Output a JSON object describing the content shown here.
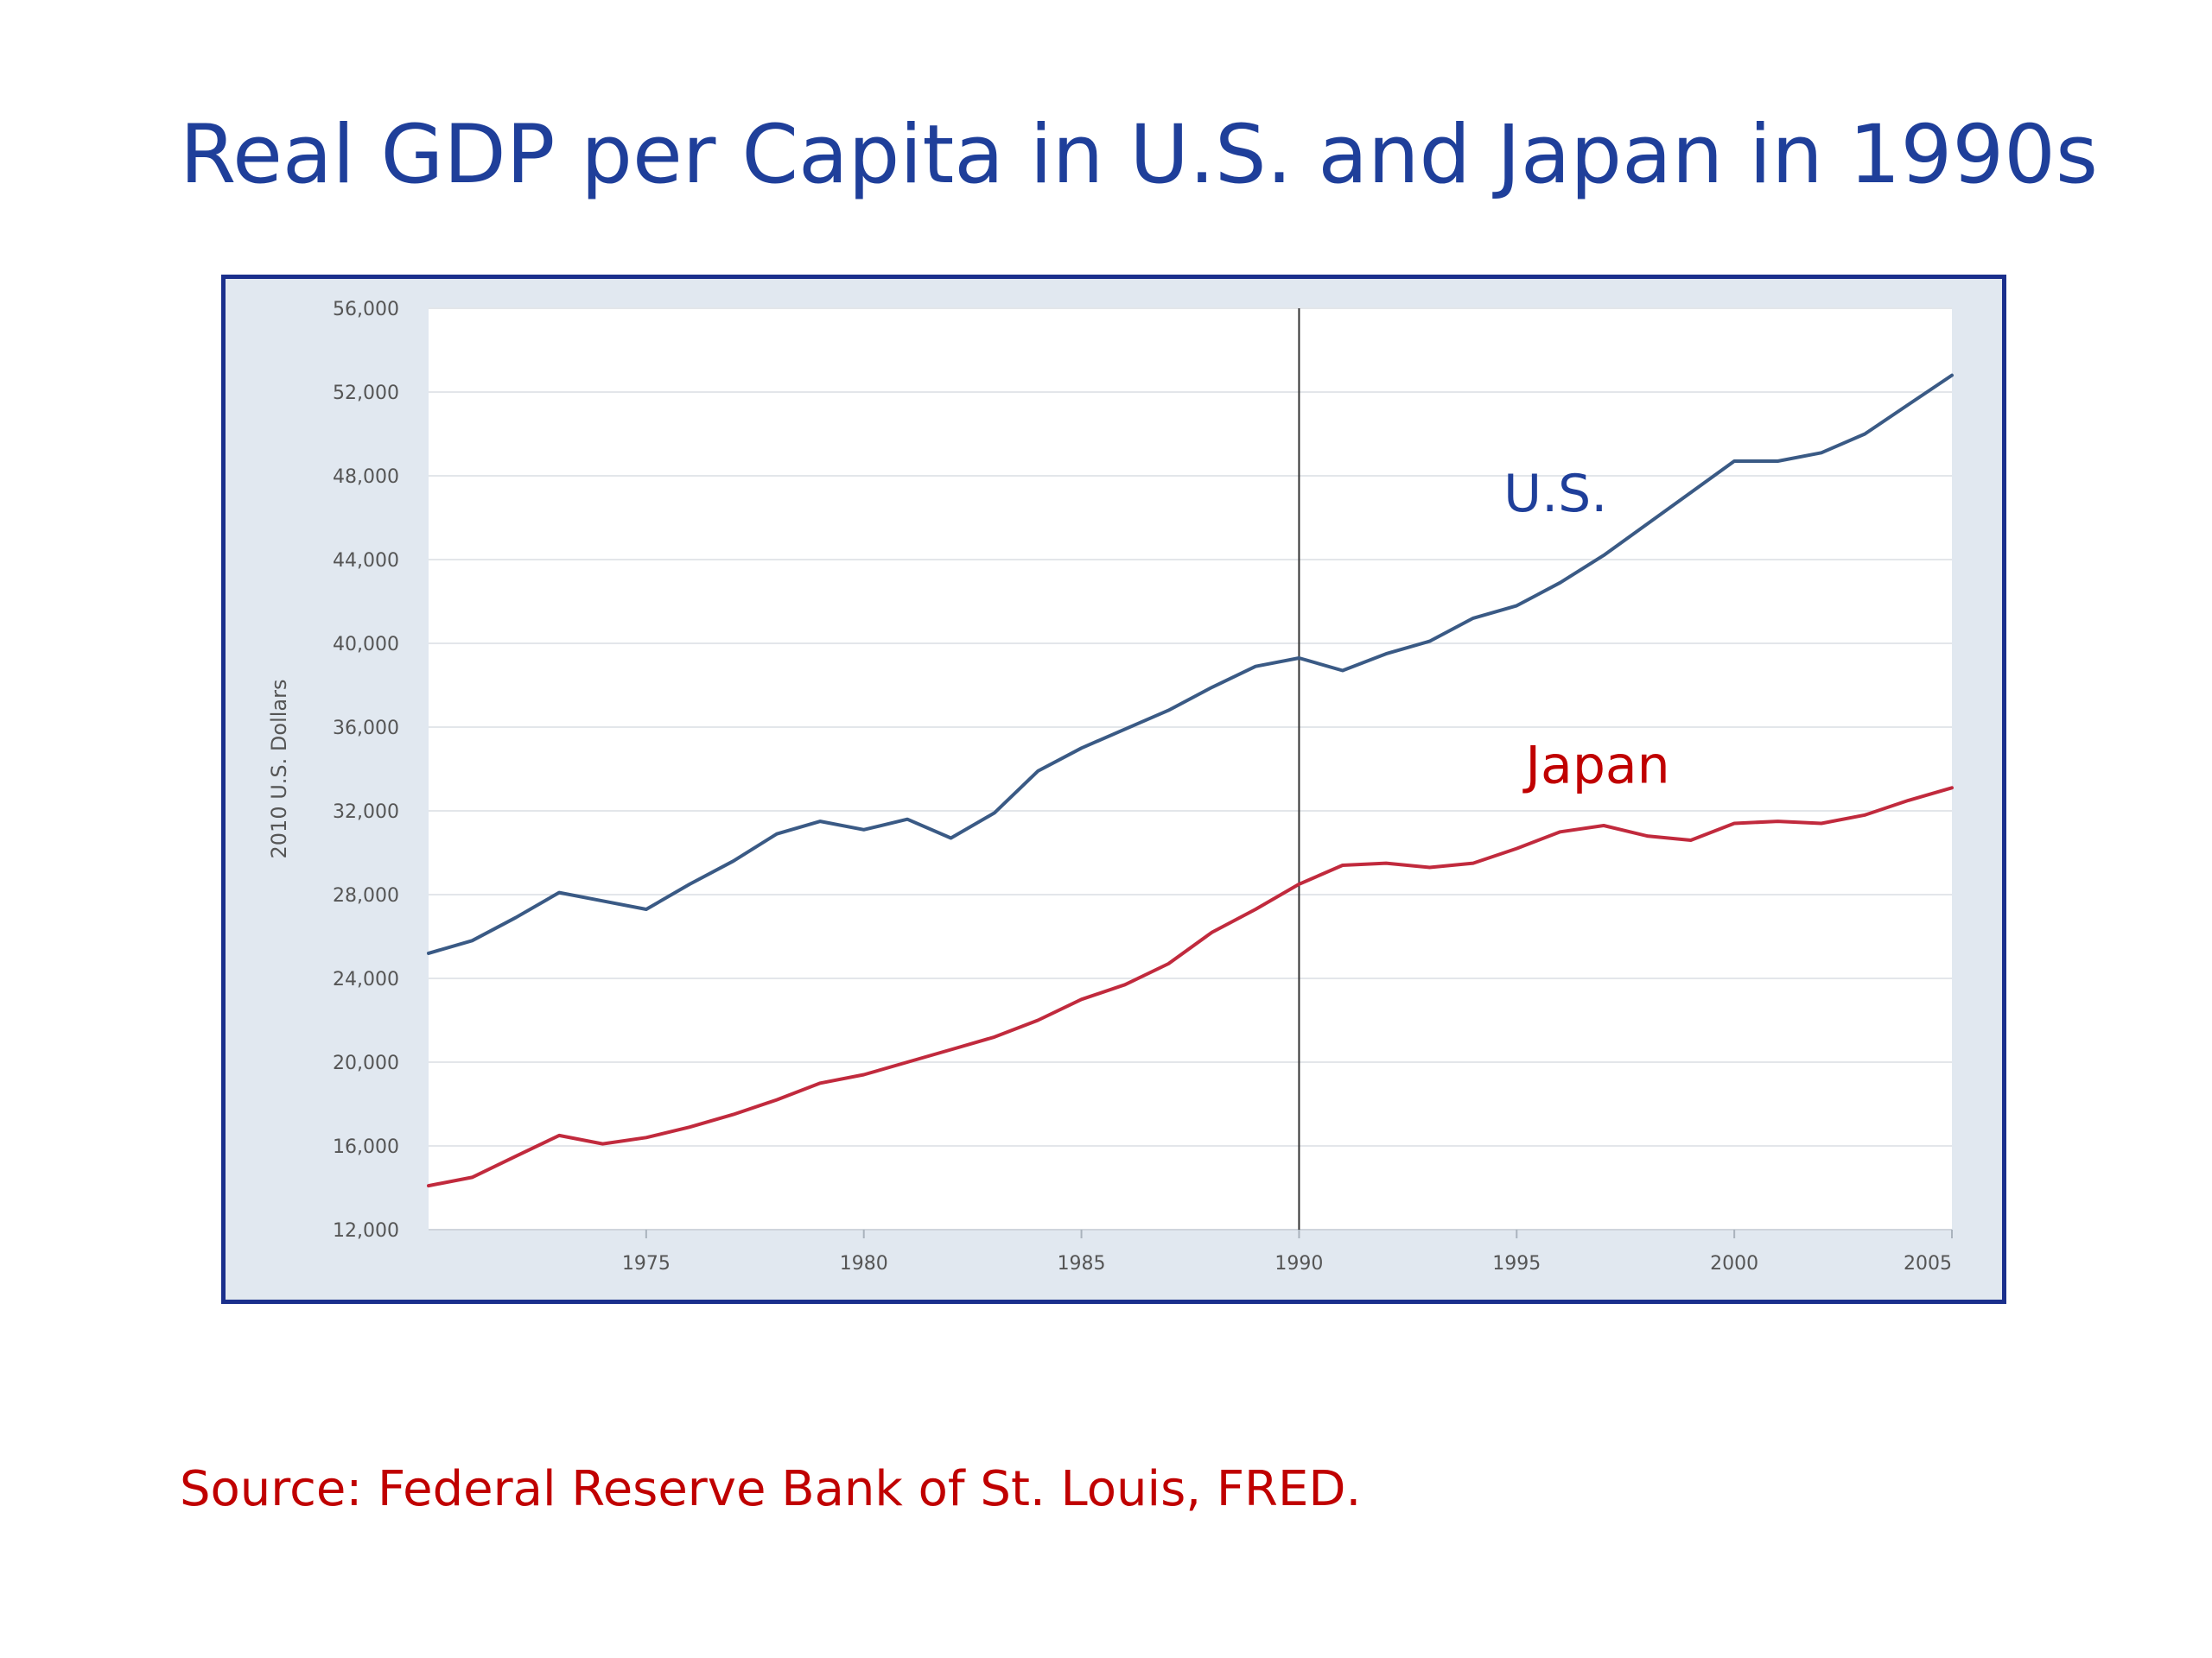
{
  "slide": {
    "title": "Real GDP per Capita in U.S. and Japan in 1990s",
    "source": "Source:  Federal Reserve Bank of St. Louis, FRED."
  },
  "colors": {
    "title": "#1f3f9a",
    "frame_border": "#1a2f8c",
    "frame_background": "#e1e8f0",
    "plot_background": "#ffffff",
    "grid": "#e3e6ea",
    "us_line": "#3a5a85",
    "japan_line": "#c12a3d",
    "us_label": "#1f3f9a",
    "japan_label": "#c00000",
    "marker_line": "#333333",
    "source": "#c00000"
  },
  "chart_data": {
    "type": "line",
    "title": "",
    "xlabel": "",
    "ylabel": "2010 U.S. Dollars",
    "xlim": [
      1970,
      2005
    ],
    "ylim": [
      12000,
      56000
    ],
    "xticks": [
      1975,
      1980,
      1985,
      1990,
      1995,
      2000,
      2005
    ],
    "xtick_labels": [
      "1975",
      "1980",
      "1985",
      "1990",
      "1995",
      "2000",
      "2005"
    ],
    "yticks": [
      12000,
      16000,
      20000,
      24000,
      28000,
      32000,
      36000,
      40000,
      44000,
      48000,
      52000,
      56000
    ],
    "ytick_labels": [
      "12,000",
      "16,000",
      "20,000",
      "24,000",
      "28,000",
      "32,000",
      "36,000",
      "40,000",
      "44,000",
      "48,000",
      "52,000",
      "56,000"
    ],
    "grid": true,
    "legend": "none",
    "annotations": [
      {
        "type": "vertical-line",
        "x": 1990
      }
    ],
    "series": [
      {
        "name": "U.S.",
        "x": [
          1970,
          1971,
          1972,
          1973,
          1974,
          1975,
          1976,
          1977,
          1978,
          1979,
          1980,
          1981,
          1982,
          1983,
          1984,
          1985,
          1986,
          1987,
          1988,
          1989,
          1990,
          1991,
          1992,
          1993,
          1994,
          1995,
          1996,
          1997,
          1998,
          1999,
          2000,
          2001,
          2002,
          2003,
          2004,
          2005
        ],
        "values": [
          25200,
          25800,
          26900,
          28100,
          27700,
          27300,
          28500,
          29600,
          30900,
          31500,
          31100,
          31600,
          30700,
          31900,
          33900,
          35000,
          35900,
          36800,
          37900,
          38900,
          39300,
          38700,
          39500,
          40100,
          41200,
          41800,
          42900,
          44200,
          45700,
          47200,
          48700,
          48700,
          49100,
          50000,
          51400,
          52800
        ]
      },
      {
        "name": "Japan",
        "x": [
          1970,
          1971,
          1972,
          1973,
          1974,
          1975,
          1976,
          1977,
          1978,
          1979,
          1980,
          1981,
          1982,
          1983,
          1984,
          1985,
          1986,
          1987,
          1988,
          1989,
          1990,
          1991,
          1992,
          1993,
          1994,
          1995,
          1996,
          1997,
          1998,
          1999,
          2000,
          2001,
          2002,
          2003,
          2004,
          2005
        ],
        "values": [
          14100,
          14500,
          15500,
          16500,
          16100,
          16400,
          16900,
          17500,
          18200,
          19000,
          19400,
          20000,
          20600,
          21200,
          22000,
          23000,
          23700,
          24700,
          26200,
          27300,
          28500,
          29400,
          29500,
          29300,
          29500,
          30200,
          31000,
          31300,
          30800,
          30600,
          31400,
          31500,
          31400,
          31800,
          32500,
          33100
        ]
      }
    ],
    "series_labels": [
      {
        "series": "U.S.",
        "text": "U.S."
      },
      {
        "series": "Japan",
        "text": "Japan"
      }
    ]
  }
}
